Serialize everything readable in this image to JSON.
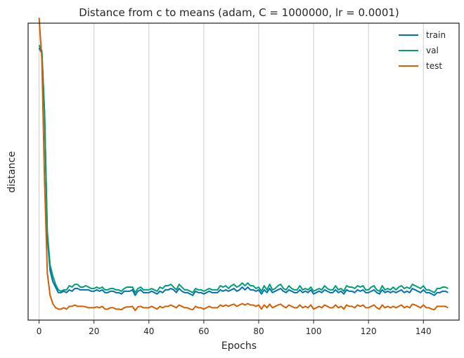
{
  "chart_data": {
    "type": "line",
    "title": "Distance from c to means (adam, C = 1000000, lr = 0.0001)",
    "xlabel": "Epochs",
    "ylabel": "distance",
    "xlim": [
      -4,
      153
    ],
    "ylim": [
      0.0,
      1.08
    ],
    "xticks": [
      0,
      20,
      40,
      60,
      80,
      100,
      120,
      140
    ],
    "grid": "x",
    "legend": "top-right",
    "colors": {
      "train": "#0072b2",
      "val": "#009e73",
      "test": "#d55e00",
      "grid": "#cccccc",
      "axis": "#262626"
    },
    "series": [
      {
        "name": "train",
        "color": "#0072b2",
        "x": [
          0,
          1,
          2,
          3,
          4,
          5,
          6,
          7,
          8,
          9,
          10,
          11,
          12,
          13,
          14,
          15,
          16,
          17,
          18,
          19,
          20,
          21,
          22,
          23,
          24,
          25,
          26,
          27,
          28,
          29,
          30,
          31,
          32,
          33,
          34,
          35,
          36,
          37,
          38,
          39,
          40,
          41,
          42,
          43,
          44,
          45,
          46,
          47,
          48,
          49,
          50,
          51,
          52,
          53,
          54,
          55,
          56,
          57,
          58,
          59,
          60,
          61,
          62,
          63,
          64,
          65,
          66,
          67,
          68,
          69,
          70,
          71,
          72,
          73,
          74,
          75,
          76,
          77,
          78,
          79,
          80,
          81,
          82,
          83,
          84,
          85,
          86,
          87,
          88,
          89,
          90,
          91,
          92,
          93,
          94,
          95,
          96,
          97,
          98,
          99,
          100,
          101,
          102,
          103,
          104,
          105,
          106,
          107,
          108,
          109,
          110,
          111,
          112,
          113,
          114,
          115,
          116,
          117,
          118,
          119,
          120,
          121,
          122,
          123,
          124,
          125,
          126,
          127,
          128,
          129,
          130,
          131,
          132,
          133,
          134,
          135,
          136,
          137,
          138,
          139,
          140,
          141,
          142,
          143,
          144,
          145,
          146,
          147,
          148,
          149
        ],
        "y": [
          0.99,
          0.97,
          0.75,
          0.3,
          0.18,
          0.14,
          0.12,
          0.1,
          0.1,
          0.105,
          0.1,
          0.11,
          0.105,
          0.115,
          0.115,
          0.11,
          0.11,
          0.11,
          0.11,
          0.105,
          0.105,
          0.11,
          0.105,
          0.11,
          0.1,
          0.1,
          0.105,
          0.105,
          0.1,
          0.1,
          0.095,
          0.105,
          0.105,
          0.105,
          0.11,
          0.09,
          0.105,
          0.11,
          0.1,
          0.1,
          0.1,
          0.105,
          0.1,
          0.095,
          0.105,
          0.1,
          0.11,
          0.11,
          0.115,
          0.11,
          0.1,
          0.115,
          0.105,
          0.1,
          0.1,
          0.095,
          0.09,
          0.105,
          0.1,
          0.1,
          0.095,
          0.1,
          0.105,
          0.1,
          0.1,
          0.1,
          0.11,
          0.105,
          0.11,
          0.105,
          0.11,
          0.115,
          0.105,
          0.11,
          0.12,
          0.11,
          0.12,
          0.11,
          0.11,
          0.105,
          0.11,
          0.095,
          0.11,
          0.1,
          0.115,
          0.1,
          0.105,
          0.11,
          0.115,
          0.105,
          0.1,
          0.11,
          0.105,
          0.1,
          0.1,
          0.11,
          0.1,
          0.105,
          0.1,
          0.11,
          0.095,
          0.1,
          0.105,
          0.1,
          0.11,
          0.105,
          0.1,
          0.1,
          0.11,
          0.1,
          0.105,
          0.095,
          0.11,
          0.105,
          0.105,
          0.1,
          0.11,
          0.105,
          0.11,
          0.1,
          0.1,
          0.105,
          0.11,
          0.1,
          0.095,
          0.11,
          0.1,
          0.105,
          0.1,
          0.105,
          0.1,
          0.105,
          0.11,
          0.1,
          0.105,
          0.1,
          0.115,
          0.11,
          0.105,
          0.1,
          0.11,
          0.1,
          0.1,
          0.095,
          0.09,
          0.1,
          0.1,
          0.105,
          0.105,
          0.1
        ]
      },
      {
        "name": "val",
        "color": "#009e73",
        "x": [
          0,
          1,
          2,
          3,
          4,
          5,
          6,
          7,
          8,
          9,
          10,
          11,
          12,
          13,
          14,
          15,
          16,
          17,
          18,
          19,
          20,
          21,
          22,
          23,
          24,
          25,
          26,
          27,
          28,
          29,
          30,
          31,
          32,
          33,
          34,
          35,
          36,
          37,
          38,
          39,
          40,
          41,
          42,
          43,
          44,
          45,
          46,
          47,
          48,
          49,
          50,
          51,
          52,
          53,
          54,
          55,
          56,
          57,
          58,
          59,
          60,
          61,
          62,
          63,
          64,
          65,
          66,
          67,
          68,
          69,
          70,
          71,
          72,
          73,
          74,
          75,
          76,
          77,
          78,
          79,
          80,
          81,
          82,
          83,
          84,
          85,
          86,
          87,
          88,
          89,
          90,
          91,
          92,
          93,
          94,
          95,
          96,
          97,
          98,
          99,
          100,
          101,
          102,
          103,
          104,
          105,
          106,
          107,
          108,
          109,
          110,
          111,
          112,
          113,
          114,
          115,
          116,
          117,
          118,
          119,
          120,
          121,
          122,
          123,
          124,
          125,
          126,
          127,
          128,
          129,
          130,
          131,
          132,
          133,
          134,
          135,
          136,
          137,
          138,
          139,
          140,
          141,
          142,
          143,
          144,
          145,
          146,
          147,
          148,
          149
        ],
        "y": [
          1.0,
          0.98,
          0.75,
          0.32,
          0.2,
          0.16,
          0.13,
          0.11,
          0.105,
          0.11,
          0.11,
          0.125,
          0.12,
          0.13,
          0.13,
          0.12,
          0.12,
          0.125,
          0.12,
          0.115,
          0.115,
          0.12,
          0.115,
          0.12,
          0.11,
          0.11,
          0.115,
          0.115,
          0.11,
          0.11,
          0.105,
          0.115,
          0.12,
          0.12,
          0.12,
          0.1,
          0.115,
          0.12,
          0.11,
          0.11,
          0.11,
          0.115,
          0.11,
          0.105,
          0.12,
          0.115,
          0.125,
          0.125,
          0.13,
          0.12,
          0.11,
          0.13,
          0.12,
          0.11,
          0.11,
          0.105,
          0.1,
          0.115,
          0.11,
          0.11,
          0.105,
          0.11,
          0.115,
          0.11,
          0.11,
          0.11,
          0.125,
          0.12,
          0.125,
          0.115,
          0.125,
          0.13,
          0.12,
          0.125,
          0.135,
          0.125,
          0.135,
          0.125,
          0.125,
          0.115,
          0.12,
          0.105,
          0.125,
          0.11,
          0.13,
          0.11,
          0.115,
          0.125,
          0.13,
          0.115,
          0.11,
          0.125,
          0.115,
          0.11,
          0.11,
          0.125,
          0.11,
          0.115,
          0.11,
          0.12,
          0.105,
          0.11,
          0.115,
          0.11,
          0.125,
          0.115,
          0.11,
          0.11,
          0.125,
          0.11,
          0.115,
          0.105,
          0.125,
          0.12,
          0.12,
          0.115,
          0.125,
          0.12,
          0.125,
          0.11,
          0.11,
          0.12,
          0.125,
          0.11,
          0.105,
          0.125,
          0.11,
          0.115,
          0.11,
          0.12,
          0.11,
          0.12,
          0.125,
          0.115,
          0.12,
          0.115,
          0.13,
          0.125,
          0.12,
          0.115,
          0.125,
          0.11,
          0.11,
          0.105,
          0.1,
          0.115,
          0.115,
          0.12,
          0.12,
          0.115
        ]
      },
      {
        "name": "test",
        "color": "#d55e00",
        "x": [
          0,
          1,
          2,
          3,
          4,
          5,
          6,
          7,
          8,
          9,
          10,
          11,
          12,
          13,
          14,
          15,
          16,
          17,
          18,
          19,
          20,
          21,
          22,
          23,
          24,
          25,
          26,
          27,
          28,
          29,
          30,
          31,
          32,
          33,
          34,
          35,
          36,
          37,
          38,
          39,
          40,
          41,
          42,
          43,
          44,
          45,
          46,
          47,
          48,
          49,
          50,
          51,
          52,
          53,
          54,
          55,
          56,
          57,
          58,
          59,
          60,
          61,
          62,
          63,
          64,
          65,
          66,
          67,
          68,
          69,
          70,
          71,
          72,
          73,
          74,
          75,
          76,
          77,
          78,
          79,
          80,
          81,
          82,
          83,
          84,
          85,
          86,
          87,
          88,
          89,
          90,
          91,
          92,
          93,
          94,
          95,
          96,
          97,
          98,
          99,
          100,
          101,
          102,
          103,
          104,
          105,
          106,
          107,
          108,
          109,
          110,
          111,
          112,
          113,
          114,
          115,
          116,
          117,
          118,
          119,
          120,
          121,
          122,
          123,
          124,
          125,
          126,
          127,
          128,
          129,
          130,
          131,
          132,
          133,
          134,
          135,
          136,
          137,
          138,
          139,
          140,
          141,
          142,
          143,
          144,
          145,
          146,
          147,
          148,
          149
        ],
        "y": [
          1.1,
          0.95,
          0.5,
          0.17,
          0.09,
          0.06,
          0.045,
          0.04,
          0.04,
          0.045,
          0.04,
          0.05,
          0.05,
          0.055,
          0.05,
          0.05,
          0.05,
          0.048,
          0.045,
          0.045,
          0.045,
          0.048,
          0.045,
          0.05,
          0.04,
          0.04,
          0.045,
          0.045,
          0.04,
          0.04,
          0.038,
          0.045,
          0.048,
          0.048,
          0.05,
          0.035,
          0.048,
          0.05,
          0.045,
          0.045,
          0.045,
          0.05,
          0.045,
          0.04,
          0.05,
          0.045,
          0.05,
          0.05,
          0.055,
          0.05,
          0.045,
          0.055,
          0.05,
          0.045,
          0.045,
          0.04,
          0.038,
          0.05,
          0.045,
          0.045,
          0.04,
          0.045,
          0.05,
          0.045,
          0.045,
          0.045,
          0.055,
          0.05,
          0.055,
          0.05,
          0.055,
          0.058,
          0.05,
          0.055,
          0.06,
          0.055,
          0.06,
          0.055,
          0.055,
          0.05,
          0.055,
          0.04,
          0.055,
          0.045,
          0.058,
          0.045,
          0.05,
          0.055,
          0.058,
          0.05,
          0.045,
          0.055,
          0.05,
          0.045,
          0.045,
          0.055,
          0.045,
          0.05,
          0.045,
          0.055,
          0.04,
          0.045,
          0.05,
          0.045,
          0.055,
          0.05,
          0.045,
          0.045,
          0.055,
          0.045,
          0.05,
          0.04,
          0.055,
          0.05,
          0.05,
          0.045,
          0.055,
          0.05,
          0.055,
          0.045,
          0.045,
          0.05,
          0.055,
          0.045,
          0.04,
          0.055,
          0.045,
          0.05,
          0.045,
          0.05,
          0.045,
          0.05,
          0.055,
          0.045,
          0.05,
          0.045,
          0.058,
          0.055,
          0.05,
          0.045,
          0.055,
          0.045,
          0.045,
          0.04,
          0.038,
          0.05,
          0.05,
          0.05,
          0.05,
          0.045
        ]
      }
    ]
  }
}
